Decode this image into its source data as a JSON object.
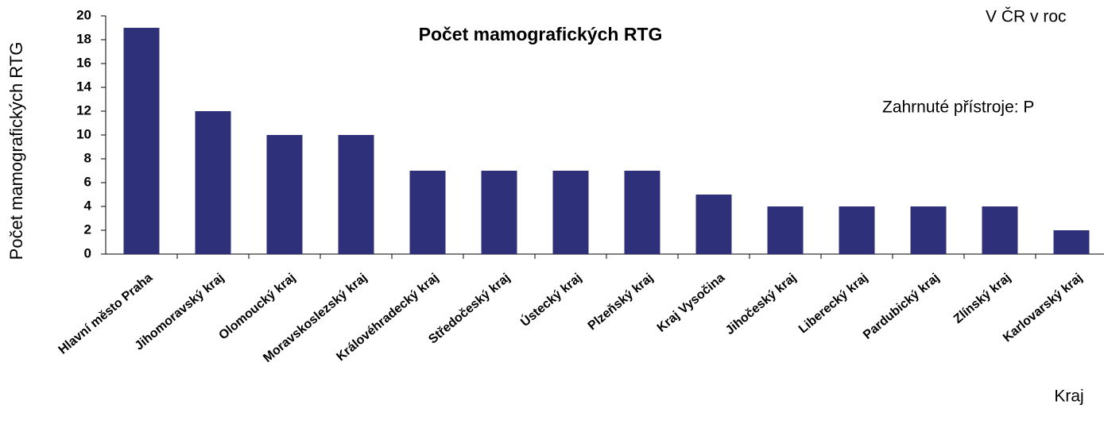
{
  "chart_data": {
    "type": "bar",
    "title": "Počet mamografických RTG",
    "y_label": "Počet mamografických RTG",
    "x_label": "Kraj",
    "annotations": [
      "V ČR v roc",
      "Zahrnuté přístroje: P"
    ],
    "categories": [
      "Hlavní město Praha",
      "Jihomoravský kraj",
      "Olomoucký kraj",
      "Moravskoslezský kraj",
      "Královéhradecký kraj",
      "Středočeský kraj",
      "Ústecký kraj",
      "Plzeňský kraj",
      "Kraj Vysočina",
      "Jihočeský kraj",
      "Liberecký kraj",
      "Pardubický kraj",
      "Zlínský kraj",
      "Karlovarský kraj"
    ],
    "values": [
      19,
      12,
      10,
      10,
      7,
      7,
      7,
      7,
      5,
      4,
      4,
      4,
      4,
      2
    ],
    "color": "#2e3079",
    "ylim": [
      0,
      20
    ],
    "yticks": [
      0,
      2,
      4,
      6,
      8,
      10,
      12,
      14,
      16,
      18,
      20
    ]
  }
}
